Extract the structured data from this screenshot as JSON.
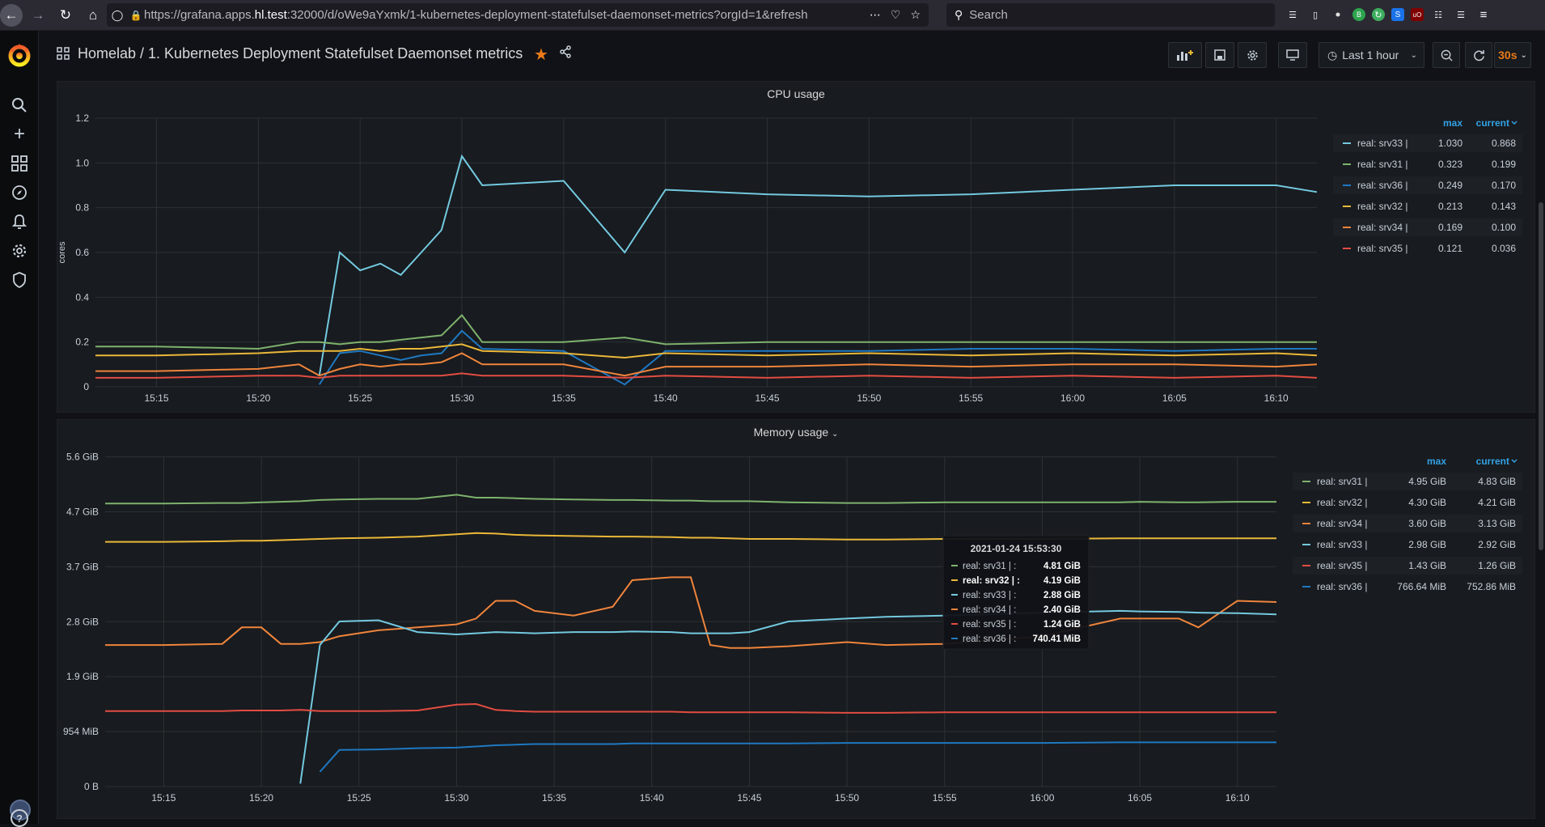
{
  "browser": {
    "url_prefix": "https://grafana.apps.",
    "url_host": "hl.test",
    "url_suffix": ":32000/d/oWe9aYxmk/1-kubernetes-deployment-statefulset-daemonset-metrics?orgId=1&refresh",
    "search_placeholder": "Search"
  },
  "header": {
    "title": "Homelab / 1. Kubernetes Deployment Statefulset Daemonset metrics",
    "time_range": "Last 1 hour",
    "refresh_interval": "30s"
  },
  "cpu_panel": {
    "title": "CPU usage",
    "legend_headers": [
      "max",
      "current"
    ],
    "legend": [
      {
        "name": "real: srv33 |",
        "max": "1.030",
        "current": "0.868",
        "color": "#73c9e0"
      },
      {
        "name": "real: srv31 |",
        "max": "0.323",
        "current": "0.199",
        "color": "#7eb26d"
      },
      {
        "name": "real: srv36 |",
        "max": "0.249",
        "current": "0.170",
        "color": "#1f78c1"
      },
      {
        "name": "real: srv32 |",
        "max": "0.213",
        "current": "0.143",
        "color": "#eab839"
      },
      {
        "name": "real: srv34 |",
        "max": "0.169",
        "current": "0.100",
        "color": "#ef843c"
      },
      {
        "name": "real: srv35 |",
        "max": "0.121",
        "current": "0.036",
        "color": "#e24d42"
      }
    ]
  },
  "memory_panel": {
    "title": "Memory usage",
    "legend_headers": [
      "max",
      "current"
    ],
    "legend": [
      {
        "name": "real: srv31 |",
        "max": "4.95 GiB",
        "current": "4.83 GiB",
        "color": "#7eb26d"
      },
      {
        "name": "real: srv32 |",
        "max": "4.30 GiB",
        "current": "4.21 GiB",
        "color": "#eab839"
      },
      {
        "name": "real: srv34 |",
        "max": "3.60 GiB",
        "current": "3.13 GiB",
        "color": "#ef843c"
      },
      {
        "name": "real: srv33 |",
        "max": "2.98 GiB",
        "current": "2.92 GiB",
        "color": "#73c9e0"
      },
      {
        "name": "real: srv35 |",
        "max": "1.43 GiB",
        "current": "1.26 GiB",
        "color": "#e24d42"
      },
      {
        "name": "real: srv36 |",
        "max": "766.64 MiB",
        "current": "752.86 MiB",
        "color": "#1f78c1"
      }
    ],
    "tooltip": {
      "time": "2021-01-24 15:53:30",
      "rows": [
        {
          "name": "real: srv31 | :",
          "value": "4.81 GiB",
          "color": "#7eb26d",
          "highlight": false
        },
        {
          "name": "real: srv32 | :",
          "value": "4.19 GiB",
          "color": "#eab839",
          "highlight": true
        },
        {
          "name": "real: srv33 | :",
          "value": "2.88 GiB",
          "color": "#73c9e0",
          "highlight": false
        },
        {
          "name": "real: srv34 | :",
          "value": "2.40 GiB",
          "color": "#ef843c",
          "highlight": false
        },
        {
          "name": "real: srv35 | :",
          "value": "1.24 GiB",
          "color": "#e24d42",
          "highlight": false
        },
        {
          "name": "real: srv36 | :",
          "value": "740.41 MiB",
          "color": "#1f78c1",
          "highlight": false
        }
      ]
    }
  },
  "chart_data": [
    {
      "type": "line",
      "title": "CPU usage",
      "ylabel": "cores",
      "ylim": [
        0,
        1.2
      ],
      "yticks": [
        "0",
        "0.2",
        "0.4",
        "0.6",
        "0.8",
        "1.0",
        "1.2"
      ],
      "ytick_values": [
        0,
        0.2,
        0.4,
        0.6,
        0.8,
        1.0,
        1.2
      ],
      "xlim": [
        "15:12",
        "16:12"
      ],
      "xticks": [
        "15:15",
        "15:20",
        "15:25",
        "15:30",
        "15:35",
        "15:40",
        "15:45",
        "15:50",
        "15:55",
        "16:00",
        "16:05",
        "16:10"
      ],
      "x": [
        "15:12",
        "15:15",
        "15:20",
        "15:22",
        "15:23",
        "15:24",
        "15:25",
        "15:26",
        "15:27",
        "15:28",
        "15:29",
        "15:30",
        "15:31",
        "15:35",
        "15:38",
        "15:40",
        "15:45",
        "15:50",
        "15:55",
        "16:00",
        "16:05",
        "16:10",
        "16:12"
      ],
      "series": [
        {
          "name": "real: srv33 |",
          "color": "#73c9e0",
          "values": [
            null,
            null,
            null,
            null,
            0.05,
            0.6,
            0.52,
            0.55,
            0.5,
            0.6,
            0.7,
            1.03,
            0.9,
            0.92,
            0.6,
            0.88,
            0.86,
            0.85,
            0.86,
            0.88,
            0.9,
            0.9,
            0.87
          ]
        },
        {
          "name": "real: srv31 |",
          "color": "#7eb26d",
          "values": [
            0.18,
            0.18,
            0.17,
            0.2,
            0.2,
            0.19,
            0.2,
            0.2,
            0.21,
            0.22,
            0.23,
            0.32,
            0.2,
            0.2,
            0.22,
            0.19,
            0.2,
            0.2,
            0.2,
            0.2,
            0.2,
            0.2,
            0.2
          ]
        },
        {
          "name": "real: srv36 |",
          "color": "#1f78c1",
          "values": [
            null,
            null,
            null,
            null,
            0.01,
            0.15,
            0.16,
            0.14,
            0.12,
            0.14,
            0.15,
            0.25,
            0.17,
            0.16,
            0.01,
            0.16,
            0.16,
            0.16,
            0.17,
            0.17,
            0.16,
            0.17,
            0.17
          ]
        },
        {
          "name": "real: srv32 |",
          "color": "#eab839",
          "values": [
            0.14,
            0.14,
            0.15,
            0.16,
            0.16,
            0.16,
            0.17,
            0.16,
            0.17,
            0.17,
            0.18,
            0.19,
            0.16,
            0.15,
            0.13,
            0.15,
            0.14,
            0.15,
            0.14,
            0.15,
            0.14,
            0.15,
            0.14
          ]
        },
        {
          "name": "real: srv34 |",
          "color": "#ef843c",
          "values": [
            0.07,
            0.07,
            0.08,
            0.1,
            0.05,
            0.08,
            0.1,
            0.09,
            0.1,
            0.1,
            0.11,
            0.15,
            0.1,
            0.1,
            0.05,
            0.09,
            0.09,
            0.1,
            0.09,
            0.1,
            0.1,
            0.09,
            0.1
          ]
        },
        {
          "name": "real: srv35 |",
          "color": "#e24d42",
          "values": [
            0.04,
            0.04,
            0.05,
            0.05,
            0.04,
            0.05,
            0.05,
            0.05,
            0.05,
            0.05,
            0.05,
            0.06,
            0.05,
            0.05,
            0.04,
            0.05,
            0.04,
            0.05,
            0.04,
            0.05,
            0.04,
            0.05,
            0.04
          ]
        }
      ]
    },
    {
      "type": "line",
      "title": "Memory usage",
      "ylim": [
        0,
        5.6
      ],
      "yticks": [
        "0 B",
        "954 MiB",
        "1.9 GiB",
        "2.8 GiB",
        "3.7 GiB",
        "4.7 GiB",
        "5.6 GiB"
      ],
      "ytick_values": [
        0,
        0.932,
        1.864,
        2.796,
        3.728,
        4.66,
        5.592
      ],
      "xlim": [
        "15:12",
        "16:12"
      ],
      "xticks": [
        "15:15",
        "15:20",
        "15:25",
        "15:30",
        "15:35",
        "15:40",
        "15:45",
        "15:50",
        "15:55",
        "16:00",
        "16:05",
        "16:10"
      ],
      "x": [
        "15:12",
        "15:15",
        "15:18",
        "15:19",
        "15:20",
        "15:21",
        "15:22",
        "15:23",
        "15:24",
        "15:26",
        "15:28",
        "15:30",
        "15:31",
        "15:32",
        "15:33",
        "15:34",
        "15:36",
        "15:38",
        "15:39",
        "15:41",
        "15:42",
        "15:43",
        "15:44",
        "15:45",
        "15:47",
        "15:50",
        "15:52",
        "15:55",
        "16:00",
        "16:04",
        "16:05",
        "16:07",
        "16:08",
        "16:10",
        "16:12"
      ],
      "series": [
        {
          "name": "real: srv31 |",
          "color": "#7eb26d",
          "values": [
            4.8,
            4.8,
            4.81,
            4.81,
            4.82,
            4.83,
            4.84,
            4.86,
            4.87,
            4.88,
            4.88,
            4.95,
            4.9,
            4.9,
            4.89,
            4.88,
            4.87,
            4.86,
            4.86,
            4.85,
            4.85,
            4.84,
            4.84,
            4.84,
            4.82,
            4.81,
            4.81,
            4.82,
            4.82,
            4.82,
            4.83,
            4.82,
            4.82,
            4.83,
            4.83
          ]
        },
        {
          "name": "real: srv32 |",
          "color": "#eab839",
          "values": [
            4.15,
            4.15,
            4.16,
            4.17,
            4.17,
            4.18,
            4.19,
            4.2,
            4.21,
            4.22,
            4.24,
            4.28,
            4.3,
            4.29,
            4.27,
            4.26,
            4.25,
            4.24,
            4.24,
            4.23,
            4.22,
            4.22,
            4.21,
            4.2,
            4.2,
            4.19,
            4.19,
            4.2,
            4.2,
            4.21,
            4.21,
            4.21,
            4.21,
            4.21,
            4.21
          ]
        },
        {
          "name": "real: srv34 |",
          "color": "#ef843c",
          "values": [
            2.4,
            2.4,
            2.42,
            2.7,
            2.7,
            2.42,
            2.42,
            2.45,
            2.55,
            2.65,
            2.7,
            2.75,
            2.85,
            3.15,
            3.15,
            2.98,
            2.9,
            3.05,
            3.5,
            3.55,
            3.55,
            2.4,
            2.35,
            2.35,
            2.38,
            2.45,
            2.4,
            2.42,
            2.55,
            2.85,
            2.85,
            2.85,
            2.7,
            3.15,
            3.13
          ]
        },
        {
          "name": "real: srv33 |",
          "color": "#73c9e0",
          "values": [
            null,
            null,
            null,
            null,
            null,
            null,
            0.05,
            2.4,
            2.8,
            2.82,
            2.62,
            2.58,
            2.6,
            2.62,
            2.61,
            2.6,
            2.62,
            2.62,
            2.63,
            2.62,
            2.6,
            2.6,
            2.6,
            2.62,
            2.8,
            2.85,
            2.88,
            2.9,
            2.95,
            2.98,
            2.97,
            2.96,
            2.95,
            2.94,
            2.92
          ]
        },
        {
          "name": "real: srv35 |",
          "color": "#e24d42",
          "values": [
            1.28,
            1.28,
            1.28,
            1.29,
            1.29,
            1.29,
            1.3,
            1.28,
            1.28,
            1.28,
            1.29,
            1.39,
            1.4,
            1.3,
            1.28,
            1.27,
            1.27,
            1.27,
            1.27,
            1.27,
            1.26,
            1.26,
            1.26,
            1.26,
            1.26,
            1.25,
            1.25,
            1.26,
            1.26,
            1.26,
            1.26,
            1.26,
            1.26,
            1.26,
            1.26
          ]
        },
        {
          "name": "real: srv36 |",
          "color": "#1f78c1",
          "values": [
            null,
            null,
            null,
            null,
            null,
            null,
            null,
            0.25,
            0.62,
            0.63,
            0.65,
            0.66,
            0.68,
            0.7,
            0.71,
            0.72,
            0.72,
            0.72,
            0.73,
            0.73,
            0.73,
            0.73,
            0.73,
            0.73,
            0.73,
            0.74,
            0.74,
            0.74,
            0.74,
            0.75,
            0.75,
            0.75,
            0.75,
            0.75,
            0.75
          ]
        }
      ]
    }
  ]
}
